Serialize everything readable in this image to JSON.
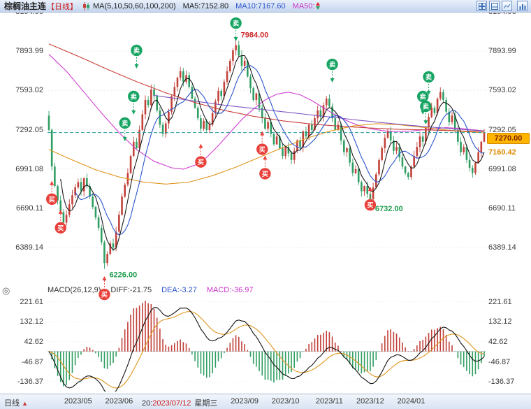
{
  "header": {
    "title": "棕榈油主连",
    "period_tag": "【日线】",
    "ma_label": "MA(5,10,50,60,100,200)",
    "ma5_label": "MA5:7152.80",
    "ma10_label": "MA10:7167.60",
    "ma50_label": "MA50:",
    "toolbar_icons": [
      "grid-layout-icon",
      "split-pane-icon",
      "line-chart-icon",
      "bar-chart-icon"
    ]
  },
  "price_badge": {
    "value": "7270.00",
    "secondary": "7160.42"
  },
  "macd_header": {
    "label": "MACD(26,12,9)",
    "diff": "DIFF:-21.75",
    "dea": "DEA:-3.27",
    "macd": "MACD:-36.97"
  },
  "bottom_bar": {
    "period": "日线",
    "arrow": "▲",
    "readout_prefix": "20:",
    "readout_date": "2023/07/12",
    "readout_weekday": "星期三"
  },
  "crosshair_icon": "◎",
  "chart_data": {
    "type": "candlestick",
    "title": "棕榈油主连 日线 (Palm Oil Main Continuous, Daily)",
    "y_axis_ticks": [
      8194.96,
      7893.99,
      7593.02,
      7292.05,
      6991.08,
      6690.11,
      6389.14
    ],
    "macd_axis_ticks": [
      221.61,
      132.12,
      42.62,
      -46.87,
      -136.37
    ],
    "last_price": 7270.0,
    "prev_ref_price": 7160.42,
    "first_open": 7400,
    "closes": [
      7290,
      7010,
      6860,
      6750,
      6660,
      6580,
      6640,
      6720,
      6790,
      6850,
      6890,
      6820,
      6920,
      6860,
      6780,
      6700,
      6620,
      6540,
      6430,
      6270,
      6340,
      6420,
      6390,
      6510,
      6640,
      6780,
      6870,
      6960,
      7090,
      7200,
      7150,
      7290,
      7410,
      7520,
      7480,
      7600,
      7550,
      7440,
      7330,
      7260,
      7340,
      7430,
      7550,
      7620,
      7690,
      7740,
      7660,
      7710,
      7620,
      7530,
      7460,
      7380,
      7300,
      7360,
      7290,
      7330,
      7420,
      7510,
      7590,
      7550,
      7660,
      7740,
      7820,
      7900,
      7940,
      7860,
      7780,
      7820,
      7700,
      7610,
      7520,
      7570,
      7460,
      7380,
      7300,
      7350,
      7260,
      7180,
      7240,
      7150,
      7090,
      7160,
      7110,
      7060,
      7130,
      7210,
      7160,
      7280,
      7240,
      7330,
      7290,
      7380,
      7440,
      7390,
      7480,
      7530,
      7470,
      7380,
      7290,
      7330,
      7210,
      7120,
      7150,
      7040,
      6960,
      6990,
      6890,
      6820,
      6860,
      6800,
      6760,
      6850,
      6950,
      7060,
      7150,
      7230,
      7280,
      7210,
      7130,
      7160,
      7080,
      7010,
      6960,
      6930,
      7010,
      7090,
      7160,
      7240,
      7200,
      7310,
      7390,
      7460,
      7420,
      7530,
      7580,
      7520,
      7430,
      7350,
      7400,
      7290,
      7200,
      7120,
      7160,
      7060,
      7000,
      6960,
      7040,
      7120,
      7200,
      7270
    ],
    "wick_overrides": {
      "19": {
        "low": 6226
      },
      "64": {
        "high": 7984
      },
      "110": {
        "low": 6732
      }
    },
    "x_ticks": [
      {
        "i": 10,
        "label": "2023/05"
      },
      {
        "i": 24,
        "label": "2023/06"
      },
      {
        "i": 67,
        "label": "2023/09"
      },
      {
        "i": 81,
        "label": "2023/10"
      },
      {
        "i": 96,
        "label": "2023/11"
      },
      {
        "i": 110,
        "label": "2023/12"
      },
      {
        "i": 124,
        "label": "2024/01"
      }
    ],
    "ma_long": [
      {
        "name": "MA50",
        "color": "#d23fd2",
        "points": [
          [
            0,
            7870
          ],
          [
            6,
            7740
          ],
          [
            12,
            7580
          ],
          [
            18,
            7420
          ],
          [
            24,
            7270
          ],
          [
            30,
            7140
          ],
          [
            36,
            7050
          ],
          [
            42,
            7000
          ],
          [
            46,
            6990
          ],
          [
            50,
            7020
          ],
          [
            54,
            7080
          ],
          [
            58,
            7170
          ],
          [
            62,
            7270
          ],
          [
            66,
            7370
          ],
          [
            70,
            7450
          ],
          [
            74,
            7520
          ],
          [
            78,
            7565
          ],
          [
            82,
            7580
          ],
          [
            86,
            7560
          ],
          [
            90,
            7515
          ],
          [
            94,
            7460
          ],
          [
            98,
            7405
          ],
          [
            102,
            7360
          ],
          [
            106,
            7325
          ],
          [
            110,
            7300
          ],
          [
            114,
            7285
          ],
          [
            118,
            7278
          ],
          [
            124,
            7282
          ],
          [
            130,
            7295
          ],
          [
            136,
            7308
          ],
          [
            142,
            7300
          ],
          [
            149,
            7282
          ]
        ]
      },
      {
        "name": "MA60",
        "color": "#e0951e",
        "points": [
          [
            0,
            7140
          ],
          [
            8,
            7060
          ],
          [
            16,
            6985
          ],
          [
            24,
            6930
          ],
          [
            32,
            6892
          ],
          [
            40,
            6875
          ],
          [
            48,
            6890
          ],
          [
            56,
            6940
          ],
          [
            64,
            7005
          ],
          [
            72,
            7080
          ],
          [
            80,
            7155
          ],
          [
            88,
            7225
          ],
          [
            96,
            7280
          ],
          [
            104,
            7320
          ],
          [
            112,
            7338
          ],
          [
            120,
            7330
          ],
          [
            128,
            7310
          ],
          [
            136,
            7290
          ],
          [
            142,
            7278
          ],
          [
            149,
            7268
          ]
        ]
      },
      {
        "name": "MA100",
        "color": "#c8403a",
        "points": [
          [
            0,
            7950
          ],
          [
            10,
            7855
          ],
          [
            20,
            7755
          ],
          [
            30,
            7660
          ],
          [
            40,
            7575
          ],
          [
            50,
            7500
          ],
          [
            60,
            7440
          ],
          [
            70,
            7395
          ],
          [
            80,
            7360
          ],
          [
            90,
            7335
          ],
          [
            100,
            7318
          ],
          [
            110,
            7305
          ],
          [
            120,
            7295
          ],
          [
            130,
            7290
          ],
          [
            140,
            7283
          ],
          [
            149,
            7278
          ]
        ]
      },
      {
        "name": "MA200",
        "color": "#7e57c2",
        "points": [
          [
            36,
            7555
          ],
          [
            44,
            7530
          ],
          [
            52,
            7505
          ],
          [
            60,
            7480
          ],
          [
            68,
            7460
          ],
          [
            76,
            7440
          ],
          [
            84,
            7420
          ],
          [
            92,
            7400
          ],
          [
            100,
            7380
          ],
          [
            108,
            7360
          ],
          [
            116,
            7342
          ],
          [
            124,
            7325
          ],
          [
            132,
            7310
          ],
          [
            140,
            7296
          ],
          [
            149,
            7283
          ]
        ]
      }
    ],
    "ma_short": {
      "ma5_color": "#1a1a1a",
      "ma10_color": "#2b55cc"
    },
    "signal_labels": {
      "buy": "买",
      "sell": "卖"
    },
    "signals": [
      {
        "type": "buy",
        "i": 1,
        "p": 6760
      },
      {
        "type": "buy",
        "i": 4,
        "p": 6540
      },
      {
        "type": "buy",
        "i": 19,
        "p": 6030
      },
      {
        "type": "sell",
        "i": 26,
        "p": 7343
      },
      {
        "type": "sell",
        "i": 29,
        "p": 7547
      },
      {
        "type": "sell",
        "i": 30,
        "p": 7900
      },
      {
        "type": "buy",
        "i": 52,
        "p": 7045
      },
      {
        "type": "sell",
        "i": 64,
        "p": 8109
      },
      {
        "type": "buy",
        "i": 73,
        "p": 7142
      },
      {
        "type": "buy",
        "i": 74,
        "p": 6955
      },
      {
        "type": "sell",
        "i": 97,
        "p": 7793
      },
      {
        "type": "buy",
        "i": 110,
        "p": 6716
      },
      {
        "type": "sell",
        "i": 128,
        "p": 7547
      },
      {
        "type": "sell",
        "i": 129,
        "p": 7471
      },
      {
        "type": "sell",
        "i": 130,
        "p": 7697
      }
    ],
    "annotations": [
      {
        "i": 19,
        "price": 6226,
        "text": "6226.00",
        "color": "#1f9e4f",
        "side": "below"
      },
      {
        "i": 64,
        "price": 7984,
        "text": "7984.00",
        "color": "#cc2b2b",
        "side": "above"
      },
      {
        "i": 110,
        "price": 6732,
        "text": "6732.00",
        "color": "#1f9e4f",
        "side": "below"
      }
    ],
    "colors": {
      "up": "#c2413a",
      "down": "#2f9e62",
      "dashed_line": "#2a9d9d",
      "macd_diff": "#111111",
      "macd_dea": "#e0951e",
      "hist_pos": "#c2413a",
      "hist_neg": "#2f9e62"
    }
  }
}
